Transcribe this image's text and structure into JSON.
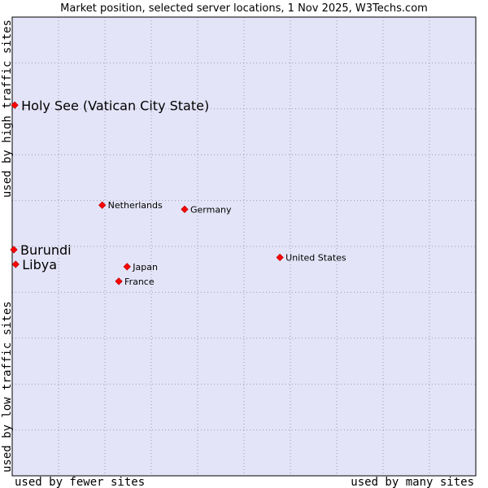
{
  "chart_data": {
    "type": "scatter",
    "title": "Market position, selected server locations, 1 Nov 2025, W3Techs.com",
    "xlabel_left": "used by fewer sites",
    "xlabel_right": "used by many sites",
    "ylabel_bottom": "used by low traffic sites",
    "ylabel_top": "used by high traffic sites",
    "xlim": [
      0,
      100
    ],
    "ylim": [
      0,
      100
    ],
    "grid": true,
    "points": [
      {
        "name": "Holy See (Vatican City State)",
        "x": 0.2,
        "y": 80.8,
        "label_size": "large"
      },
      {
        "name": "Netherlands",
        "x": 19.2,
        "y": 59.0,
        "label_size": "small"
      },
      {
        "name": "Germany",
        "x": 37.1,
        "y": 58.1,
        "label_size": "small"
      },
      {
        "name": "Burundi",
        "x": 0.0,
        "y": 49.3,
        "label_size": "large"
      },
      {
        "name": "United States",
        "x": 57.8,
        "y": 47.6,
        "label_size": "small"
      },
      {
        "name": "Libya",
        "x": 0.4,
        "y": 46.1,
        "label_size": "large"
      },
      {
        "name": "Japan",
        "x": 24.6,
        "y": 45.6,
        "label_size": "small"
      },
      {
        "name": "France",
        "x": 22.8,
        "y": 42.4,
        "label_size": "small"
      }
    ],
    "colors": {
      "plot_bg": "#e4e4f8",
      "point": "#ff0000",
      "grid": "#9a9ab0"
    }
  }
}
